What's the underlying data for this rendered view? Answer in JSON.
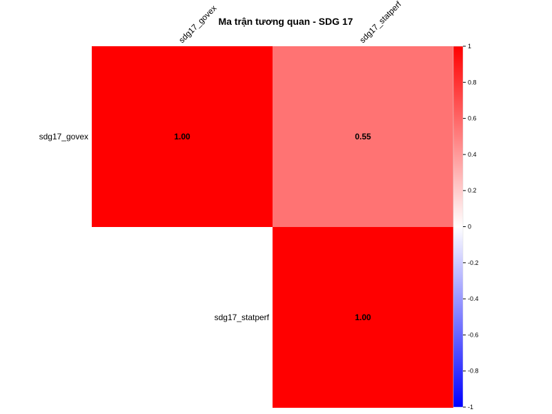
{
  "chart_data": {
    "type": "heatmap",
    "title": "Ma trận tương quan - SDG 17",
    "variables": [
      "sdg17_govex",
      "sdg17_statperf"
    ],
    "matrix": [
      [
        1.0,
        0.55
      ],
      [
        0.55,
        1.0
      ]
    ],
    "display": "upper",
    "cell_labels": [
      [
        "1.00",
        "0.55"
      ],
      [
        "",
        "1.00"
      ]
    ],
    "color_scale": {
      "min": -1,
      "max": 1,
      "low_color": "#0000FF",
      "mid_color": "#FFFFFF",
      "high_color": "#FF0000",
      "ticks": [
        1,
        0.8,
        0.6,
        0.4,
        0.2,
        0,
        -0.2,
        -0.4,
        -0.6,
        -0.8,
        -1
      ],
      "tick_labels": [
        "1",
        "0.8",
        "0.6",
        "0.4",
        "0.2",
        "0",
        "-0.2",
        "-0.4",
        "-0.6",
        "-0.8",
        "-1"
      ]
    },
    "legend_position": "right"
  }
}
